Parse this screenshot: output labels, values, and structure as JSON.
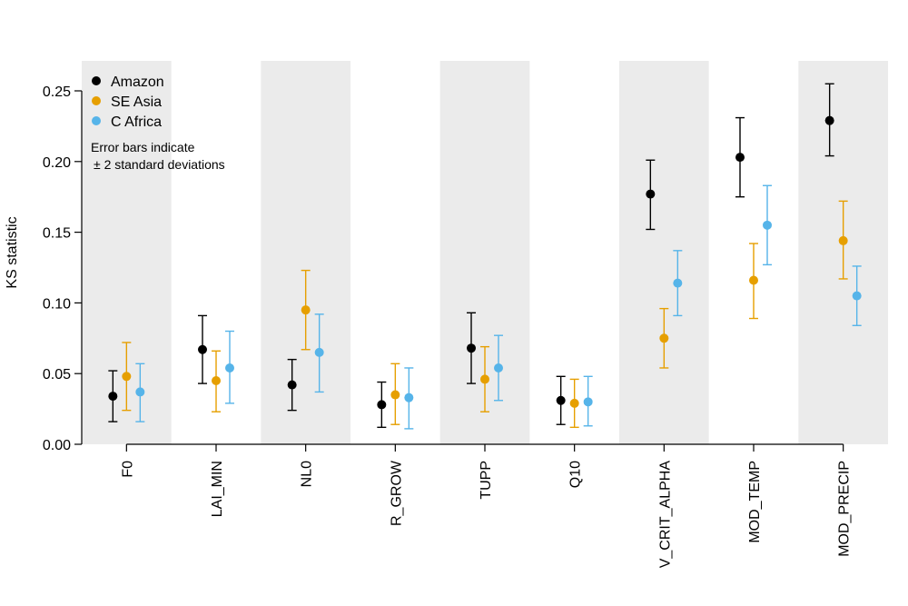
{
  "chart_data": {
    "type": "scatter",
    "ylabel": "KS statistic",
    "xlabel": "",
    "ylim": [
      0,
      0.27
    ],
    "yticks": [
      "0.00",
      "0.05",
      "0.10",
      "0.15",
      "0.20",
      "0.25"
    ],
    "categories": [
      "F0",
      "LAI_MIN",
      "NL0",
      "R_GROW",
      "TUPP",
      "Q10",
      "V_CRIT_ALPHA",
      "MOD_TEMP",
      "MOD_PRECIP"
    ],
    "shaded_categories": [
      "F0",
      "NL0",
      "TUPP",
      "V_CRIT_ALPHA",
      "MOD_PRECIP"
    ],
    "shade_color": "#ebebeb",
    "series": [
      {
        "name": "Amazon",
        "color": "#000000",
        "values": [
          0.034,
          0.067,
          0.042,
          0.028,
          0.068,
          0.031,
          0.177,
          0.203,
          0.229
        ],
        "lower": [
          0.016,
          0.043,
          0.024,
          0.012,
          0.043,
          0.014,
          0.152,
          0.175,
          0.204
        ],
        "upper": [
          0.052,
          0.091,
          0.06,
          0.044,
          0.093,
          0.048,
          0.201,
          0.231,
          0.255
        ]
      },
      {
        "name": "SE Asia",
        "color": "#e69f00",
        "values": [
          0.048,
          0.045,
          0.095,
          0.035,
          0.046,
          0.029,
          0.075,
          0.116,
          0.144
        ],
        "lower": [
          0.024,
          0.023,
          0.067,
          0.014,
          0.023,
          0.012,
          0.054,
          0.089,
          0.117
        ],
        "upper": [
          0.072,
          0.066,
          0.123,
          0.057,
          0.069,
          0.046,
          0.096,
          0.142,
          0.172
        ]
      },
      {
        "name": "C Africa",
        "color": "#56b4e9",
        "values": [
          0.037,
          0.054,
          0.065,
          0.033,
          0.054,
          0.03,
          0.114,
          0.155,
          0.105
        ],
        "lower": [
          0.016,
          0.029,
          0.037,
          0.011,
          0.031,
          0.013,
          0.091,
          0.127,
          0.084
        ],
        "upper": [
          0.057,
          0.08,
          0.092,
          0.054,
          0.077,
          0.048,
          0.137,
          0.183,
          0.126
        ]
      }
    ],
    "legend": {
      "position": "top-left",
      "note_line1": "Error bars indicate",
      "note_line2": "± 2 standard deviations"
    }
  }
}
